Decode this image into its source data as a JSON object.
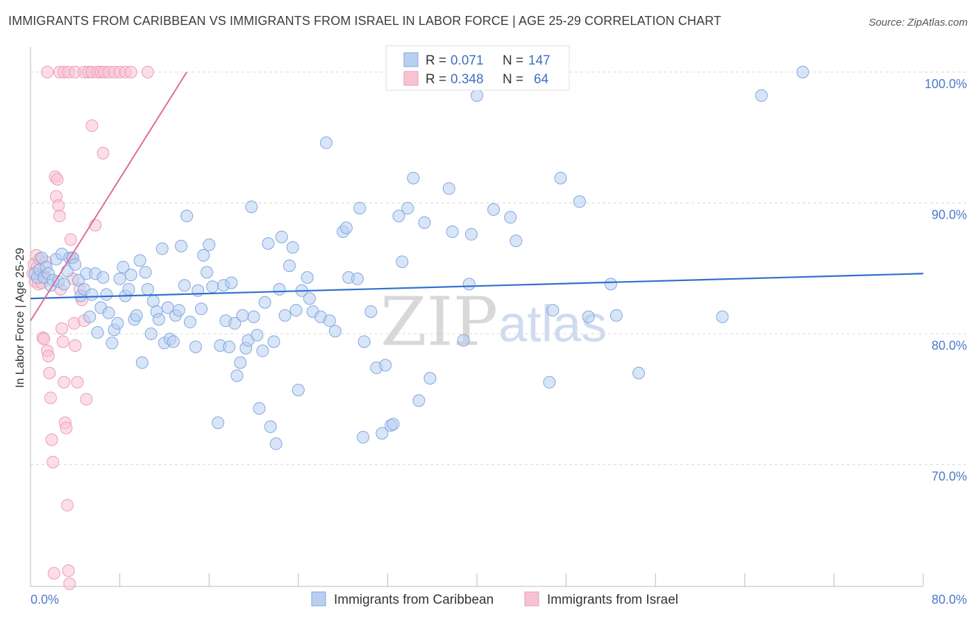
{
  "header": {
    "title": "IMMIGRANTS FROM CARIBBEAN VS IMMIGRANTS FROM ISRAEL IN LABOR FORCE | AGE 25-29 CORRELATION CHART",
    "source": "Source: ZipAtlas.com"
  },
  "watermark": {
    "zip": "ZIP",
    "atlas": "atlas"
  },
  "legend": {
    "r_label": "R =",
    "n_label": "N =",
    "rows": [
      {
        "series": "Immigrants from Caribbean",
        "r": "0.071",
        "n": "147"
      },
      {
        "series": "Immigrants from Israel",
        "r": "0.348",
        "n": "64"
      }
    ]
  },
  "bottom_legend": [
    "Immigrants from Caribbean",
    "Immigrants from Israel"
  ],
  "colors": {
    "blue_fill": "#b8cff0",
    "blue_stroke": "#7fa6e0",
    "blue_line": "#2f6fd0",
    "pink_fill": "#f7c3d3",
    "pink_stroke": "#ee9ab5",
    "pink_line": "#e06b97",
    "grid": "#d8d8d8",
    "tick_text": "#4a7ac9"
  },
  "chart_data": {
    "type": "scatter",
    "title": "IMMIGRANTS FROM CARIBBEAN VS IMMIGRANTS FROM ISRAEL IN LABOR FORCE | AGE 25-29 CORRELATION CHART",
    "xlabel": "",
    "ylabel": "In Labor Force | Age 25-29",
    "xlim": [
      0,
      80
    ],
    "ylim": [
      60.7,
      101.9
    ],
    "x_tick_labels": [
      "0.0%",
      "80.0%"
    ],
    "y_ticks": [
      70,
      80,
      90,
      100
    ],
    "y_tick_labels": [
      "70.0%",
      "80.0%",
      "90.0%",
      "100.0%"
    ],
    "series": [
      {
        "name": "Immigrants from Caribbean",
        "r": 0.071,
        "n": 147,
        "trend": {
          "x": [
            0,
            80
          ],
          "y": [
            82.7,
            84.6
          ]
        },
        "points": [
          [
            0.4,
            84.6
          ],
          [
            0.6,
            84.3
          ],
          [
            0.8,
            84.9
          ],
          [
            1.0,
            85.8
          ],
          [
            1.2,
            84.3
          ],
          [
            1.4,
            85.1
          ],
          [
            1.6,
            84.6
          ],
          [
            1.8,
            83.7
          ],
          [
            2.0,
            84.1
          ],
          [
            2.3,
            85.7
          ],
          [
            2.5,
            84.0
          ],
          [
            2.8,
            86.1
          ],
          [
            3.0,
            83.8
          ],
          [
            3.3,
            84.8
          ],
          [
            3.5,
            85.8
          ],
          [
            3.8,
            85.8
          ],
          [
            4.0,
            85.3
          ],
          [
            4.3,
            84.1
          ],
          [
            4.5,
            82.9
          ],
          [
            4.8,
            83.4
          ],
          [
            5.0,
            84.6
          ],
          [
            5.3,
            81.3
          ],
          [
            5.5,
            83.0
          ],
          [
            5.8,
            84.6
          ],
          [
            6.0,
            80.1
          ],
          [
            6.3,
            82.0
          ],
          [
            6.5,
            84.3
          ],
          [
            6.8,
            83.0
          ],
          [
            7.0,
            81.6
          ],
          [
            7.3,
            79.3
          ],
          [
            7.5,
            80.3
          ],
          [
            7.8,
            80.8
          ],
          [
            8.0,
            84.2
          ],
          [
            8.3,
            85.1
          ],
          [
            8.5,
            82.9
          ],
          [
            8.8,
            83.4
          ],
          [
            9.0,
            84.5
          ],
          [
            9.3,
            81.1
          ],
          [
            9.5,
            81.4
          ],
          [
            9.8,
            85.6
          ],
          [
            10.0,
            77.8
          ],
          [
            10.3,
            84.7
          ],
          [
            10.5,
            83.4
          ],
          [
            10.8,
            80.0
          ],
          [
            11.0,
            82.5
          ],
          [
            11.3,
            81.7
          ],
          [
            11.5,
            81.1
          ],
          [
            11.8,
            86.5
          ],
          [
            12.0,
            79.3
          ],
          [
            12.3,
            82.0
          ],
          [
            12.5,
            79.6
          ],
          [
            12.8,
            79.4
          ],
          [
            13.0,
            81.4
          ],
          [
            13.3,
            81.8
          ],
          [
            13.5,
            86.7
          ],
          [
            13.8,
            83.7
          ],
          [
            14.0,
            89.0
          ],
          [
            14.3,
            80.9
          ],
          [
            14.8,
            79.0
          ],
          [
            15.0,
            83.3
          ],
          [
            15.3,
            81.9
          ],
          [
            15.5,
            86.0
          ],
          [
            15.8,
            84.7
          ],
          [
            16.0,
            86.8
          ],
          [
            16.3,
            83.6
          ],
          [
            16.8,
            73.2
          ],
          [
            17.0,
            79.1
          ],
          [
            17.3,
            83.7
          ],
          [
            17.5,
            81.0
          ],
          [
            17.8,
            79.0
          ],
          [
            18.0,
            83.9
          ],
          [
            18.3,
            80.8
          ],
          [
            18.5,
            76.8
          ],
          [
            18.8,
            77.8
          ],
          [
            19.0,
            81.4
          ],
          [
            19.3,
            78.9
          ],
          [
            19.5,
            79.5
          ],
          [
            19.8,
            89.7
          ],
          [
            20.0,
            81.3
          ],
          [
            20.3,
            79.9
          ],
          [
            20.5,
            74.3
          ],
          [
            20.8,
            78.7
          ],
          [
            21.0,
            82.4
          ],
          [
            21.3,
            86.9
          ],
          [
            21.5,
            72.9
          ],
          [
            21.8,
            79.4
          ],
          [
            22.0,
            71.6
          ],
          [
            22.3,
            83.4
          ],
          [
            22.5,
            87.4
          ],
          [
            22.8,
            81.4
          ],
          [
            23.2,
            85.2
          ],
          [
            23.5,
            86.6
          ],
          [
            23.8,
            81.8
          ],
          [
            24.0,
            75.7
          ],
          [
            24.3,
            83.3
          ],
          [
            24.8,
            84.3
          ],
          [
            25.0,
            82.7
          ],
          [
            25.3,
            81.7
          ],
          [
            26.0,
            81.3
          ],
          [
            26.5,
            94.6
          ],
          [
            26.8,
            81.0
          ],
          [
            27.3,
            80.2
          ],
          [
            28.0,
            87.8
          ],
          [
            28.3,
            88.1
          ],
          [
            28.5,
            84.3
          ],
          [
            29.3,
            84.2
          ],
          [
            29.5,
            89.6
          ],
          [
            29.8,
            72.1
          ],
          [
            29.9,
            79.4
          ],
          [
            30.5,
            81.7
          ],
          [
            31.0,
            77.4
          ],
          [
            31.5,
            72.4
          ],
          [
            31.8,
            77.6
          ],
          [
            32.3,
            73.0
          ],
          [
            32.5,
            73.1
          ],
          [
            33.0,
            89.0
          ],
          [
            33.3,
            85.5
          ],
          [
            33.8,
            89.6
          ],
          [
            34.3,
            91.9
          ],
          [
            34.8,
            74.9
          ],
          [
            35.3,
            88.5
          ],
          [
            35.8,
            76.6
          ],
          [
            37.5,
            91.1
          ],
          [
            37.8,
            87.8
          ],
          [
            38.8,
            79.5
          ],
          [
            39.3,
            83.8
          ],
          [
            39.5,
            87.6
          ],
          [
            40.0,
            98.2
          ],
          [
            41.5,
            89.5
          ],
          [
            43.0,
            88.9
          ],
          [
            43.5,
            87.1
          ],
          [
            44.5,
            100.0
          ],
          [
            46.5,
            76.3
          ],
          [
            46.8,
            81.8
          ],
          [
            47.5,
            91.9
          ],
          [
            49.2,
            90.1
          ],
          [
            50.0,
            81.3
          ],
          [
            52.0,
            83.8
          ],
          [
            52.5,
            81.4
          ],
          [
            54.5,
            77.0
          ],
          [
            62.0,
            81.3
          ],
          [
            65.5,
            98.2
          ],
          [
            69.2,
            100.0
          ]
        ]
      },
      {
        "name": "Immigrants from Israel",
        "r": 0.348,
        "n": 64,
        "trend": {
          "x": [
            0,
            14.0
          ],
          "y": 81.0
        },
        "trend_y": [
          81.0,
          100.0
        ],
        "points": [
          [
            0.2,
            84.6
          ],
          [
            0.3,
            85.3
          ],
          [
            0.4,
            84.0
          ],
          [
            0.5,
            86.0
          ],
          [
            0.6,
            85.1
          ],
          [
            0.7,
            83.8
          ],
          [
            0.8,
            85.7
          ],
          [
            0.9,
            84.5
          ],
          [
            1.0,
            83.9
          ],
          [
            1.1,
            79.7
          ],
          [
            1.2,
            79.6
          ],
          [
            1.3,
            84.4
          ],
          [
            1.4,
            85.5
          ],
          [
            1.5,
            78.7
          ],
          [
            1.6,
            78.3
          ],
          [
            1.7,
            77.0
          ],
          [
            1.8,
            75.1
          ],
          [
            1.9,
            71.9
          ],
          [
            2.0,
            70.2
          ],
          [
            2.1,
            61.7
          ],
          [
            2.2,
            92.0
          ],
          [
            2.3,
            90.5
          ],
          [
            2.4,
            91.8
          ],
          [
            2.5,
            89.8
          ],
          [
            2.6,
            89.0
          ],
          [
            2.7,
            83.4
          ],
          [
            2.8,
            80.4
          ],
          [
            2.9,
            79.4
          ],
          [
            3.0,
            76.3
          ],
          [
            3.1,
            73.2
          ],
          [
            3.2,
            72.8
          ],
          [
            3.3,
            66.9
          ],
          [
            3.4,
            61.9
          ],
          [
            3.5,
            60.9
          ],
          [
            3.6,
            87.2
          ],
          [
            3.7,
            85.8
          ],
          [
            3.8,
            84.2
          ],
          [
            3.9,
            80.8
          ],
          [
            4.0,
            79.1
          ],
          [
            4.2,
            76.3
          ],
          [
            4.4,
            83.4
          ],
          [
            4.6,
            82.6
          ],
          [
            4.8,
            81.0
          ],
          [
            5.0,
            75.0
          ],
          [
            1.5,
            100.0
          ],
          [
            2.6,
            100.0
          ],
          [
            3.0,
            100.0
          ],
          [
            3.4,
            100.0
          ],
          [
            4.0,
            100.0
          ],
          [
            4.8,
            100.0
          ],
          [
            5.2,
            100.0
          ],
          [
            5.5,
            100.0
          ],
          [
            6.0,
            100.0
          ],
          [
            6.3,
            100.0
          ],
          [
            6.6,
            100.0
          ],
          [
            7.0,
            100.0
          ],
          [
            7.5,
            100.0
          ],
          [
            8.0,
            100.0
          ],
          [
            8.5,
            100.0
          ],
          [
            9.0,
            100.0
          ],
          [
            10.5,
            100.0
          ],
          [
            5.5,
            95.9
          ],
          [
            6.5,
            93.8
          ],
          [
            5.8,
            88.3
          ]
        ]
      }
    ]
  }
}
